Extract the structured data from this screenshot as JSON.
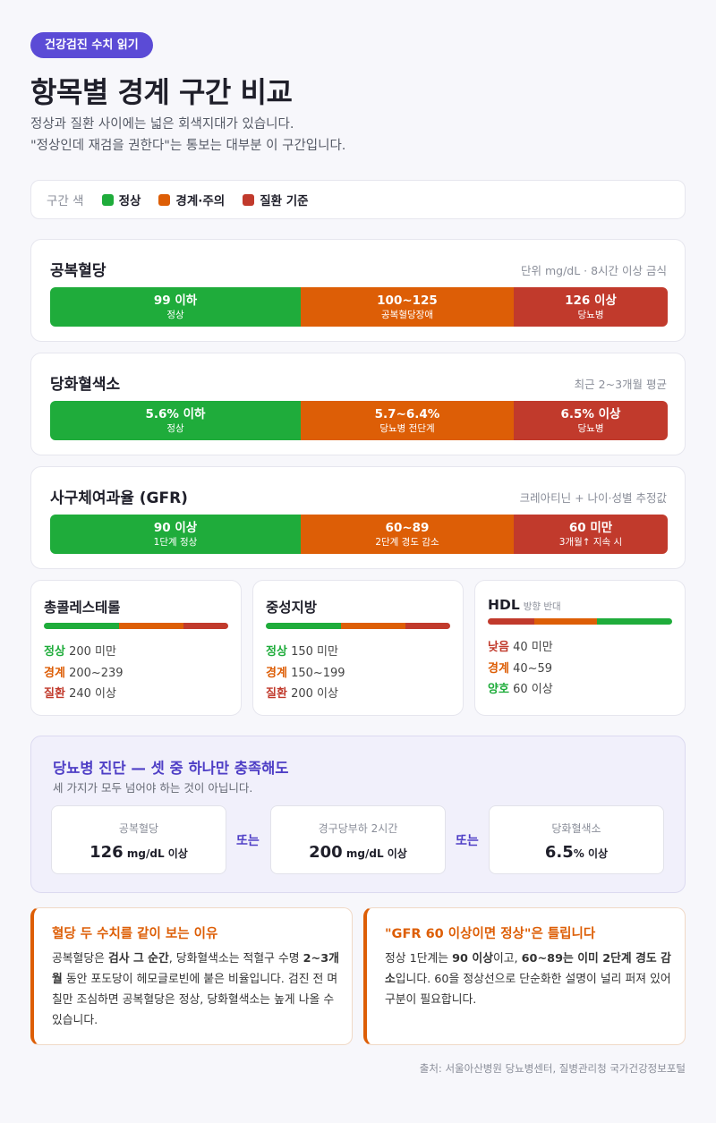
{
  "header": {
    "badge": "건강검진 수치 읽기",
    "title": "항목별 경계 구간 비교",
    "subtitle_line1": "정상과 질환 사이에는 넓은 회색지대가 있습니다.",
    "subtitle_line2": "\"정상인데 재검을 권한다\"는 통보는 대부분 이 구간입니다."
  },
  "legend": {
    "title": "구간 색",
    "normal": "정상",
    "caution": "경계·주의",
    "disease": "질환 기준"
  },
  "colors": {
    "normal": "#1fac3b",
    "caution": "#dd5e06",
    "disease": "#c13a2c",
    "accent": "#5b4bd6"
  },
  "glucose": {
    "title": "공복혈당",
    "note": "단위 mg/dL · 8시간 이상 금식",
    "seg1_value": "99 이하",
    "seg1_sub": "정상",
    "seg2_value": "100~125",
    "seg2_sub": "공복혈당장애",
    "seg3_value": "126 이상",
    "seg3_sub": "당뇨병"
  },
  "hba1c": {
    "title": "당화혈색소",
    "note": "최근 2~3개월 평균",
    "seg1_value": "5.6% 이하",
    "seg1_sub": "정상",
    "seg2_value": "5.7~6.4%",
    "seg2_sub": "당뇨병 전단계",
    "seg3_value": "6.5% 이상",
    "seg3_sub": "당뇨병"
  },
  "gfr": {
    "title": "사구체여과율 (GFR)",
    "note": "크레아티닌 + 나이·성별 추정값",
    "seg1_value": "90 이상",
    "seg1_sub": "1단계 정상",
    "seg2_value": "60~89",
    "seg2_sub": "2단계 경도 감소",
    "seg3_value": "60 미만",
    "seg3_sub": "3개월↑ 지속 시"
  },
  "cholesterol": {
    "title": "총콜레스테롤",
    "r1_label": "정상",
    "r1_value": "200 미만",
    "r2_label": "경계",
    "r2_value": "200~239",
    "r3_label": "질환",
    "r3_value": "240 이상"
  },
  "triglyceride": {
    "title": "중성지방",
    "r1_label": "정상",
    "r1_value": "150 미만",
    "r2_label": "경계",
    "r2_value": "150~199",
    "r3_label": "질환",
    "r3_value": "200 이상"
  },
  "hdl": {
    "title": "HDL",
    "direction": "방향 반대",
    "r1_label": "낮음",
    "r1_value": "40 미만",
    "r2_label": "경계",
    "r2_value": "40~59",
    "r3_label": "양호",
    "r3_value": "60 이상"
  },
  "diagnosis": {
    "title": "당뇨병 진단 — 셋 중 하나만 충족해도",
    "subtitle": "세 가지가 모두 넘어야 하는 것이 아닙니다.",
    "or_label": "또는",
    "box1_label": "공복혈당",
    "box1_value": "126",
    "box1_unit": " mg/dL 이상",
    "box2_label": "경구당부하 2시간",
    "box2_value": "200",
    "box2_unit": " mg/dL 이상",
    "box3_label": "당화혈색소",
    "box3_value": "6.5",
    "box3_unit": "% 이상"
  },
  "note_left": {
    "title": "혈당 두 수치를 같이 보는 이유",
    "t1": "공복혈당은 ",
    "b1": "검사 그 순간",
    "t2": ", 당화혈색소는 적혈구 수명 ",
    "b2": "2~3개월",
    "t3": " 동안 포도당이 헤모글로빈에 붙은 비율입니다. 검진 전 며칠만 조심하면 공복혈당은 정상, 당화혈색소는 높게 나올 수 있습니다."
  },
  "note_right": {
    "title": "\"GFR 60 이상이면 정상\"은 틀립니다",
    "t1": "정상 1단계는 ",
    "b1": "90 이상",
    "t2": "이고, ",
    "b2": "60~89는 이미 2단계 경도 감소",
    "t3": "입니다. 60을 정상선으로 단순화한 설명이 널리 퍼져 있어 구분이 필요합니다."
  },
  "source": "출처: 서울아산병원 당뇨병센터, 질병관리청 국가건강정보포털"
}
